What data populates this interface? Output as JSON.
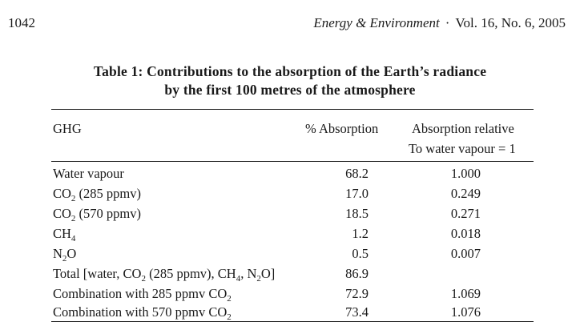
{
  "page_number": "1042",
  "journal": "Energy & Environment",
  "separator": "·",
  "volume_info": "Vol. 16, No. 6, 2005",
  "table": {
    "title_line_1": "Table 1: Contributions to the absorption of the Earth’s radiance",
    "title_line_2": "by the first 100 metres of the atmosphere",
    "headers": {
      "ghg": "GHG",
      "absorption": "% Absorption",
      "relative_line_1": "Absorption relative",
      "relative_line_2": "To water vapour = 1"
    },
    "rows": [
      {
        "ghg": "Water vapour",
        "absorption": "68.2",
        "relative": "1.000"
      },
      {
        "ghg_pre": "CO",
        "ghg_sub": "2",
        "ghg_post": " (285 ppmv)",
        "absorption": "17.0",
        "relative": "0.249"
      },
      {
        "ghg_pre": "CO",
        "ghg_sub": "2",
        "ghg_post": " (570 ppmv)",
        "absorption": "18.5",
        "relative": "0.271"
      },
      {
        "ghg_pre": "CH",
        "ghg_sub": "4",
        "absorption": "1.2",
        "relative": "0.018"
      },
      {
        "ghg_pre": "N",
        "ghg_sub": "2",
        "ghg_post": "O",
        "absorption": "0.5",
        "relative": "0.007"
      },
      {
        "ghg_pre": "Total [water, CO",
        "ghg_sub": "2",
        "ghg_mid": " (285 ppmv), CH",
        "ghg_sub2": "4",
        "ghg_mid2": ", N",
        "ghg_sub3": "2",
        "ghg_post": "O]",
        "absorption": "86.9",
        "relative": ""
      },
      {
        "ghg_pre": "Combination with 285 ppmv CO",
        "ghg_sub": "2",
        "absorption": "72.9",
        "relative": "1.069"
      },
      {
        "ghg_pre": "Combination with 570 ppmv CO",
        "ghg_sub": "2",
        "absorption": "73.4",
        "relative": "1.076"
      }
    ]
  }
}
